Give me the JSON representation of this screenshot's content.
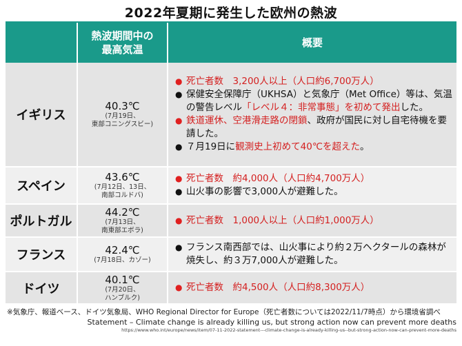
{
  "title": "2022年夏期に発生した欧州の熱波",
  "headers": {
    "col2_line1": "熱波期間中の",
    "col2_line2": "最高気温",
    "col3": "概要"
  },
  "rows": [
    {
      "country": "イギリス",
      "temp": "40.3℃",
      "note1": "(7月19日、",
      "note2": "東部コニングスビー)",
      "items": [
        {
          "red_bullet": true,
          "segs": [
            {
              "t": "死亡者数　3,200人以上（人口約6,700万人）",
              "red": true
            }
          ]
        },
        {
          "red_bullet": false,
          "segs": [
            {
              "t": "保健安全保障庁（UKHSA）と気象庁（Met Office）等は、気温の警告レベル",
              "red": false
            },
            {
              "t": "「レベル４：非常事態」を初めて発出",
              "red": true
            },
            {
              "t": "した。",
              "red": false
            }
          ]
        },
        {
          "red_bullet": true,
          "segs": [
            {
              "t": "鉄道運休、空港滑走路の閉鎖",
              "red": true
            },
            {
              "t": "、政府が国民に対し自宅待機を要請した。",
              "red": false
            }
          ]
        },
        {
          "red_bullet": false,
          "segs": [
            {
              "t": "７月19日に",
              "red": false
            },
            {
              "t": "観測史上初めて40℃を超えた",
              "red": true
            },
            {
              "t": "。",
              "red": false
            }
          ]
        }
      ]
    },
    {
      "country": "スペイン",
      "temp": "43.6℃",
      "note1": "(7月12日、13日、",
      "note2": "南部コルドバ)",
      "items": [
        {
          "red_bullet": true,
          "segs": [
            {
              "t": "死亡者数　約4,000人（人口約4,700万人）",
              "red": true
            }
          ]
        },
        {
          "red_bullet": false,
          "segs": [
            {
              "t": "山火事の影響で3,000人が避難した。",
              "red": false
            }
          ]
        }
      ]
    },
    {
      "country": "ポルトガル",
      "temp": "44.2℃",
      "note1": "(7月13日、",
      "note2": "南東部エボラ)",
      "items": [
        {
          "red_bullet": true,
          "segs": [
            {
              "t": "死亡者数　1,000人以上（人口約1,000万人）",
              "red": true
            }
          ]
        }
      ]
    },
    {
      "country": "フランス",
      "temp": "42.4℃",
      "note1": "(7月18日、カゾー)",
      "note2": "",
      "items": [
        {
          "red_bullet": false,
          "segs": [
            {
              "t": "フランス南西部では、山火事により約２万ヘクタールの森林が焼失し、約３万7,000人が避難した。",
              "red": false
            }
          ]
        }
      ]
    },
    {
      "country": "ドイツ",
      "temp": "40.1℃",
      "note1": "(7月20日、",
      "note2": "ハンブルク)",
      "items": [
        {
          "red_bullet": true,
          "segs": [
            {
              "t": "死亡者数　約4,500人（人口約8,300万人）",
              "red": true
            }
          ]
        }
      ]
    }
  ],
  "footnote": {
    "line1": "※気象庁、報道ベース、ドイツ気象局、WHO Regional Director for Europe（死亡者数については2022/11/7時点）から環境省調べ",
    "line2": "Statement – Climate change is already killing us, but strong action now can prevent more deaths",
    "line3": "https://www.who.int/europe/news/item/07-11-2022-statement---climate-change-is-already-killing-us--but-strong-action-now-can-prevent-more-deaths"
  },
  "colors": {
    "header": "#1a9a8a",
    "red": "#d42020"
  }
}
